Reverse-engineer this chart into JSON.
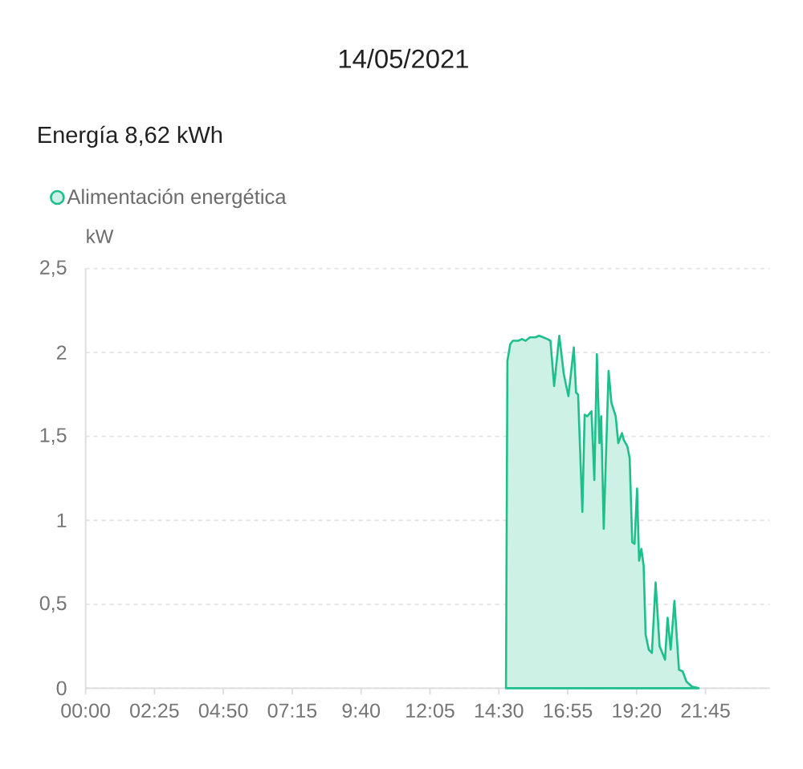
{
  "chart_data": {
    "type": "area",
    "title": "14/05/2021",
    "subtitle": "Energía 8,62 kWh",
    "ylabel": "kW",
    "x": [
      14.75,
      14.8,
      14.9,
      14.99,
      15.18,
      15.31,
      15.44,
      15.59,
      15.78,
      15.91,
      16.06,
      16.2,
      16.31,
      16.44,
      16.62,
      16.78,
      16.94,
      17.13,
      17.21,
      17.28,
      17.43,
      17.51,
      17.6,
      17.75,
      17.85,
      17.94,
      18.03,
      18.09,
      18.18,
      18.35,
      18.45,
      18.6,
      18.69,
      18.82,
      18.88,
      19.01,
      19.09,
      19.18,
      19.26,
      19.35,
      19.42,
      19.5,
      19.58,
      19.65,
      19.76,
      19.87,
      20.0,
      20.14,
      20.33,
      20.42,
      20.53,
      20.66,
      20.82,
      20.95,
      21.08,
      21.27,
      21.51
    ],
    "series": [
      {
        "name": "Alimentación energética",
        "color": "#1dbf8a",
        "values": [
          0,
          1.95,
          2.05,
          2.07,
          2.07,
          2.08,
          2.07,
          2.09,
          2.09,
          2.1,
          2.09,
          2.08,
          2.07,
          1.8,
          2.1,
          1.87,
          1.74,
          2.03,
          1.76,
          1.75,
          1.05,
          1.63,
          1.62,
          1.65,
          1.24,
          1.99,
          1.46,
          1.62,
          0.95,
          1.89,
          1.7,
          1.62,
          1.46,
          1.52,
          1.48,
          1.44,
          1.37,
          0.87,
          0.86,
          1.19,
          0.76,
          0.83,
          0.73,
          0.32,
          0.23,
          0.21,
          0.63,
          0.25,
          0.17,
          0.42,
          0.23,
          0.52,
          0.11,
          0.1,
          0.04,
          0.01,
          0
        ]
      }
    ],
    "xlim": [
      0,
      24
    ],
    "ylim": [
      0,
      2.5
    ],
    "xticks": [
      {
        "value": 0,
        "label": "00:00"
      },
      {
        "value": 2.4167,
        "label": "02:25"
      },
      {
        "value": 4.8333,
        "label": "04:50"
      },
      {
        "value": 7.25,
        "label": "07:15"
      },
      {
        "value": 9.6667,
        "label": "9:40"
      },
      {
        "value": 12.0833,
        "label": "12:05"
      },
      {
        "value": 14.5,
        "label": "14:30"
      },
      {
        "value": 16.9167,
        "label": "16:55"
      },
      {
        "value": 19.3333,
        "label": "19:20"
      },
      {
        "value": 21.75,
        "label": "21:45"
      }
    ],
    "yticks": [
      0,
      {
        "value": 0.5,
        "label": "0,5"
      },
      1,
      {
        "value": 1.5,
        "label": "1,5"
      },
      2,
      {
        "value": 2.5,
        "label": "2,5"
      }
    ],
    "grid": "y",
    "legend": "top left"
  }
}
